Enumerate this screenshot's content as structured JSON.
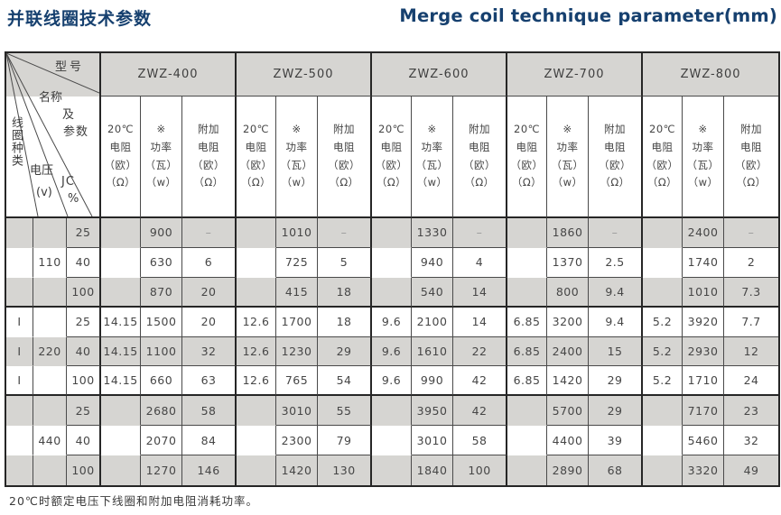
{
  "page": {
    "title_zh": "并联线圈技术参数",
    "title_en": "Merge coil technique parameter(mm)",
    "footnote": "20℃时额定电压下线圈和附加电阻消耗功率。"
  },
  "table": {
    "corner": {
      "model": "型号",
      "name_1": "名称",
      "name_2": "及",
      "name_3": "参数",
      "coil_type": "线圈种类",
      "voltage": "电压",
      "voltage_unit": "(v)",
      "jc": "JC",
      "jc_unit": "%"
    },
    "groups": [
      "ZWZ-400",
      "ZWZ-500",
      "ZWZ-600",
      "ZWZ-700",
      "ZWZ-800"
    ],
    "sub_headers": {
      "resistance": [
        "20℃",
        "电阻",
        "（欧）",
        "（Ω）"
      ],
      "power": [
        "※",
        "功率",
        "（瓦）",
        "（w）"
      ],
      "extra": [
        "附加",
        "电阻",
        "（欧）",
        "（Ω）"
      ]
    },
    "rows": [
      [
        "",
        "",
        "25",
        "",
        "900",
        "–",
        "",
        "1010",
        "–",
        "",
        "1330",
        "–",
        "",
        "1860",
        "–",
        "",
        "2400",
        "–"
      ],
      [
        "",
        "110",
        "40",
        "",
        "630",
        "6",
        "",
        "725",
        "5",
        "",
        "940",
        "4",
        "",
        "1370",
        "2.5",
        "",
        "1740",
        "2"
      ],
      [
        "",
        "",
        "100",
        "",
        "870",
        "20",
        "",
        "415",
        "18",
        "",
        "540",
        "14",
        "",
        "800",
        "9.4",
        "",
        "1010",
        "7.3"
      ],
      [
        "I",
        "",
        "25",
        "14.15",
        "1500",
        "20",
        "12.6",
        "1700",
        "18",
        "9.6",
        "2100",
        "14",
        "6.85",
        "3200",
        "9.4",
        "5.2",
        "3920",
        "7.7"
      ],
      [
        "I",
        "220",
        "40",
        "14.15",
        "1100",
        "32",
        "12.6",
        "1230",
        "29",
        "9.6",
        "1610",
        "22",
        "6.85",
        "2400",
        "15",
        "5.2",
        "2930",
        "12"
      ],
      [
        "I",
        "",
        "100",
        "14.15",
        "660",
        "63",
        "12.6",
        "765",
        "54",
        "9.6",
        "990",
        "42",
        "6.85",
        "1420",
        "29",
        "5.2",
        "1710",
        "24"
      ],
      [
        "",
        "",
        "25",
        "",
        "2680",
        "58",
        "",
        "3010",
        "55",
        "",
        "3950",
        "42",
        "",
        "5700",
        "29",
        "",
        "7170",
        "23"
      ],
      [
        "",
        "440",
        "40",
        "",
        "2070",
        "84",
        "",
        "2300",
        "79",
        "",
        "3010",
        "58",
        "",
        "4400",
        "39",
        "",
        "5460",
        "32"
      ],
      [
        "",
        "",
        "100",
        "",
        "1270",
        "146",
        "",
        "1420",
        "130",
        "",
        "1840",
        "100",
        "",
        "2890",
        "68",
        "",
        "3320",
        "49"
      ]
    ]
  }
}
